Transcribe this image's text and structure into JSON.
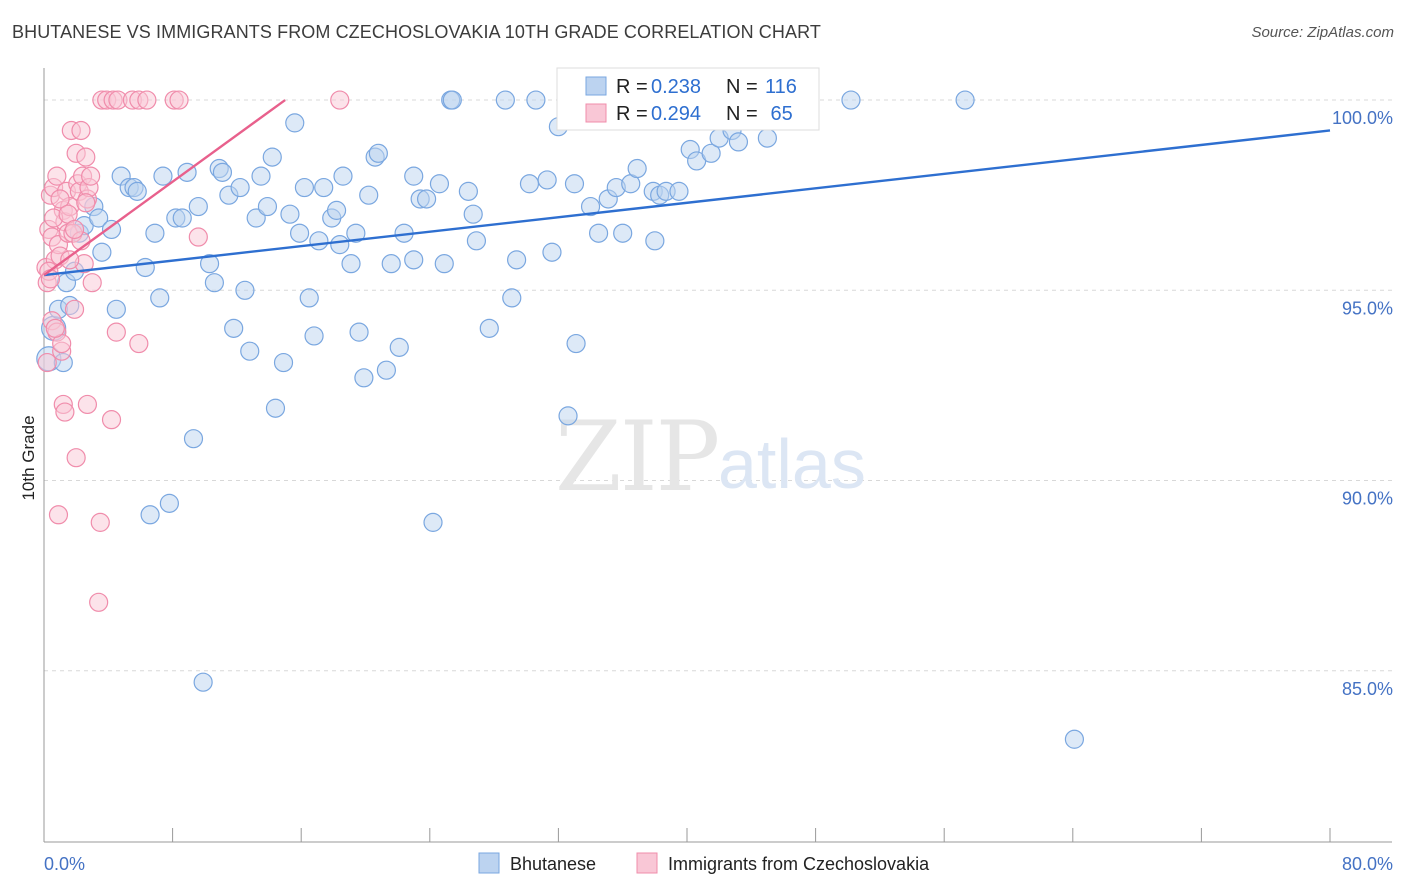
{
  "title": "BHUTANESE VS IMMIGRANTS FROM CZECHOSLOVAKIA 10TH GRADE CORRELATION CHART",
  "source": "Source: ZipAtlas.com",
  "watermark": {
    "zip": "ZIP",
    "atlas": "atlas"
  },
  "colors": {
    "blue": "#7aa7e0",
    "blue_fill": "#bcd3f0",
    "blue_line": "#2e6fd0",
    "pink": "#f08cab",
    "pink_fill": "#f9c7d6",
    "pink_line": "#e8608c",
    "axis_text": "#4472c4"
  },
  "legend": {
    "r_label": "R =",
    "n_label": "N =",
    "series": [
      {
        "r": "0.238",
        "n": "116"
      },
      {
        "r": "0.294",
        "n": " 65"
      }
    ]
  },
  "bottom_legend": [
    "Bhutanese",
    "Immigrants from Czechoslovakia"
  ],
  "chart_data": {
    "type": "scatter",
    "title": "BHUTANESE VS IMMIGRANTS FROM CZECHOSLOVAKIA 10TH GRADE CORRELATION CHART",
    "xlabel": "",
    "ylabel": "10th Grade",
    "xlim": [
      0,
      80
    ],
    "ylim": [
      80.5,
      101
    ],
    "x_tick_labels": [
      "0.0%",
      "80.0%"
    ],
    "y_ticks": [
      85,
      90,
      95,
      100
    ],
    "y_tick_labels": [
      "85.0%",
      "90.0%",
      "95.0%",
      "100.0%"
    ],
    "grid": true,
    "series": [
      {
        "name": "Bhutanese",
        "trend": {
          "x": [
            0,
            80
          ],
          "y": [
            95.4,
            99.2
          ]
        },
        "points": [
          [
            0.3,
            93.2
          ],
          [
            0.6,
            94.0
          ],
          [
            0.9,
            94.5
          ],
          [
            1.2,
            93.1
          ],
          [
            1.4,
            95.2
          ],
          [
            1.6,
            94.6
          ],
          [
            1.9,
            95.5
          ],
          [
            2.2,
            96.5
          ],
          [
            2.5,
            96.7
          ],
          [
            3.1,
            97.2
          ],
          [
            3.4,
            96.9
          ],
          [
            3.6,
            96.0
          ],
          [
            4.2,
            96.6
          ],
          [
            4.5,
            94.5
          ],
          [
            4.8,
            98.0
          ],
          [
            5.3,
            97.7
          ],
          [
            5.6,
            97.7
          ],
          [
            5.8,
            97.6
          ],
          [
            6.3,
            95.6
          ],
          [
            6.6,
            89.1
          ],
          [
            6.9,
            96.5
          ],
          [
            7.2,
            94.8
          ],
          [
            7.4,
            98.0
          ],
          [
            7.8,
            89.4
          ],
          [
            8.2,
            96.9
          ],
          [
            8.6,
            96.9
          ],
          [
            8.9,
            98.1
          ],
          [
            9.3,
            91.1
          ],
          [
            9.6,
            97.2
          ],
          [
            9.9,
            84.7
          ],
          [
            10.3,
            95.7
          ],
          [
            10.6,
            95.2
          ],
          [
            10.9,
            98.2
          ],
          [
            11.1,
            98.1
          ],
          [
            11.5,
            97.5
          ],
          [
            11.8,
            94.0
          ],
          [
            12.2,
            97.7
          ],
          [
            12.5,
            95.0
          ],
          [
            12.8,
            93.4
          ],
          [
            13.2,
            96.9
          ],
          [
            13.5,
            98.0
          ],
          [
            13.9,
            97.2
          ],
          [
            14.2,
            98.5
          ],
          [
            14.4,
            91.9
          ],
          [
            14.9,
            93.1
          ],
          [
            15.3,
            97.0
          ],
          [
            15.6,
            99.4
          ],
          [
            15.9,
            96.5
          ],
          [
            16.2,
            97.7
          ],
          [
            16.5,
            94.8
          ],
          [
            16.8,
            93.8
          ],
          [
            17.1,
            96.3
          ],
          [
            17.4,
            97.7
          ],
          [
            17.9,
            96.9
          ],
          [
            18.2,
            97.1
          ],
          [
            18.6,
            98.0
          ],
          [
            19.1,
            95.7
          ],
          [
            19.4,
            96.5
          ],
          [
            19.6,
            93.9
          ],
          [
            19.9,
            92.7
          ],
          [
            20.2,
            97.5
          ],
          [
            20.6,
            98.5
          ],
          [
            20.8,
            98.6
          ],
          [
            21.3,
            92.9
          ],
          [
            21.6,
            95.7
          ],
          [
            22.1,
            93.5
          ],
          [
            22.4,
            96.5
          ],
          [
            23.0,
            98.0
          ],
          [
            23.4,
            97.4
          ],
          [
            23.8,
            97.4
          ],
          [
            24.2,
            88.9
          ],
          [
            24.6,
            97.8
          ],
          [
            24.9,
            95.7
          ],
          [
            25.3,
            100.0
          ],
          [
            25.4,
            100.0
          ],
          [
            26.4,
            97.6
          ],
          [
            26.7,
            97.0
          ],
          [
            26.9,
            96.3
          ],
          [
            28.7,
            100.0
          ],
          [
            29.1,
            94.8
          ],
          [
            29.4,
            95.8
          ],
          [
            30.2,
            97.8
          ],
          [
            30.6,
            100.0
          ],
          [
            31.3,
            97.9
          ],
          [
            31.6,
            96.0
          ],
          [
            32.0,
            99.3
          ],
          [
            32.6,
            91.7
          ],
          [
            33.0,
            97.8
          ],
          [
            34.0,
            97.2
          ],
          [
            34.5,
            96.5
          ],
          [
            35.1,
            97.4
          ],
          [
            35.6,
            97.7
          ],
          [
            36.5,
            97.8
          ],
          [
            36.9,
            98.2
          ],
          [
            37.9,
            97.6
          ],
          [
            38.3,
            97.5
          ],
          [
            38.7,
            97.6
          ],
          [
            39.5,
            97.6
          ],
          [
            40.2,
            98.7
          ],
          [
            40.6,
            98.4
          ],
          [
            41.5,
            98.6
          ],
          [
            42.0,
            99.0
          ],
          [
            42.4,
            100.0
          ],
          [
            42.8,
            99.2
          ],
          [
            43.2,
            98.9
          ],
          [
            44.0,
            100.0
          ],
          [
            45.0,
            99.0
          ],
          [
            33.1,
            93.6
          ],
          [
            38.0,
            96.3
          ],
          [
            50.2,
            100.0
          ],
          [
            57.3,
            100.0
          ],
          [
            64.1,
            83.2
          ],
          [
            27.7,
            94.0
          ],
          [
            23.0,
            95.8
          ],
          [
            36.0,
            96.5
          ],
          [
            18.4,
            96.2
          ]
        ]
      },
      {
        "name": "Immigrants from Czechoslovakia",
        "trend": {
          "x": [
            0,
            15
          ],
          "y": [
            95.4,
            100.0
          ]
        },
        "points": [
          [
            0.1,
            95.6
          ],
          [
            0.2,
            95.2
          ],
          [
            0.3,
            96.6
          ],
          [
            0.4,
            97.5
          ],
          [
            0.5,
            96.4
          ],
          [
            0.6,
            97.7
          ],
          [
            0.7,
            95.8
          ],
          [
            0.8,
            98.0
          ],
          [
            0.9,
            96.2
          ],
          [
            1.0,
            95.9
          ],
          [
            1.1,
            93.4
          ],
          [
            1.2,
            97.1
          ],
          [
            1.3,
            96.8
          ],
          [
            1.4,
            97.6
          ],
          [
            1.5,
            96.5
          ],
          [
            1.6,
            97.2
          ],
          [
            1.7,
            99.2
          ],
          [
            1.8,
            96.5
          ],
          [
            1.9,
            94.5
          ],
          [
            2.0,
            98.6
          ],
          [
            2.1,
            97.8
          ],
          [
            2.2,
            97.6
          ],
          [
            2.3,
            96.3
          ],
          [
            2.4,
            98.0
          ],
          [
            2.5,
            95.7
          ],
          [
            2.6,
            98.5
          ],
          [
            2.7,
            97.4
          ],
          [
            2.8,
            97.7
          ],
          [
            2.9,
            98.0
          ],
          [
            3.0,
            95.2
          ],
          [
            0.5,
            94.2
          ],
          [
            0.8,
            93.9
          ],
          [
            1.2,
            92.0
          ],
          [
            1.3,
            91.8
          ],
          [
            2.0,
            90.6
          ],
          [
            2.7,
            92.0
          ],
          [
            3.5,
            88.9
          ],
          [
            3.4,
            86.8
          ],
          [
            0.9,
            89.1
          ],
          [
            4.2,
            91.6
          ],
          [
            4.5,
            93.9
          ],
          [
            5.9,
            93.6
          ],
          [
            3.6,
            100.0
          ],
          [
            3.9,
            100.0
          ],
          [
            4.3,
            100.0
          ],
          [
            4.6,
            100.0
          ],
          [
            5.5,
            100.0
          ],
          [
            5.9,
            100.0
          ],
          [
            6.4,
            100.0
          ],
          [
            8.1,
            100.0
          ],
          [
            8.4,
            100.0
          ],
          [
            18.4,
            100.0
          ],
          [
            9.6,
            96.4
          ],
          [
            0.2,
            93.1
          ],
          [
            0.3,
            95.5
          ],
          [
            0.6,
            96.9
          ],
          [
            1.0,
            97.4
          ],
          [
            1.5,
            97.0
          ],
          [
            1.9,
            96.6
          ],
          [
            2.3,
            99.2
          ],
          [
            2.6,
            97.3
          ],
          [
            0.4,
            95.3
          ],
          [
            1.1,
            93.6
          ],
          [
            0.7,
            94.0
          ],
          [
            1.6,
            95.8
          ]
        ]
      }
    ]
  }
}
